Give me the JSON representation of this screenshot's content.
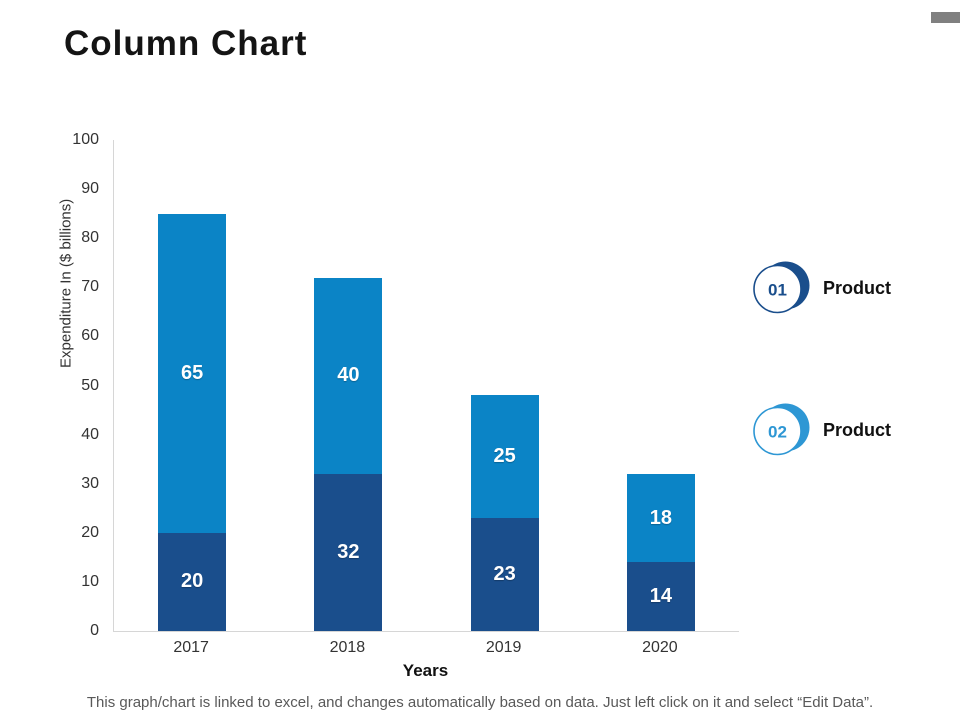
{
  "slide": {
    "title": "Column Chart",
    "footer": "This graph/chart is linked to excel, and changes automatically based on data. Just left click on it and select “Edit Data”."
  },
  "chart_data": {
    "type": "bar",
    "stacked": true,
    "categories": [
      "2017",
      "2018",
      "2019",
      "2020"
    ],
    "series": [
      {
        "name": "Product 01",
        "color": "#1A4E8C",
        "values": [
          20,
          32,
          23,
          14
        ]
      },
      {
        "name": "Product 02",
        "color": "#0B84C6",
        "values": [
          65,
          40,
          25,
          18
        ]
      }
    ],
    "totals": [
      85,
      72,
      48,
      32
    ],
    "xlabel": "Years",
    "ylabel": "Expenditure In ($ billions)",
    "ylim": [
      0,
      100
    ],
    "yticks": [
      0,
      10,
      20,
      30,
      40,
      50,
      60,
      70,
      80,
      90,
      100
    ],
    "grid": false,
    "bar_value_labels": true,
    "legend_position": "right"
  },
  "legend": {
    "items": [
      {
        "number": "01",
        "label": "Product",
        "color": "#1A4E8C"
      },
      {
        "number": "02",
        "label": "Product",
        "color": "#2E97D4"
      }
    ]
  },
  "decor": {
    "corner_tab_color": "#808080"
  }
}
